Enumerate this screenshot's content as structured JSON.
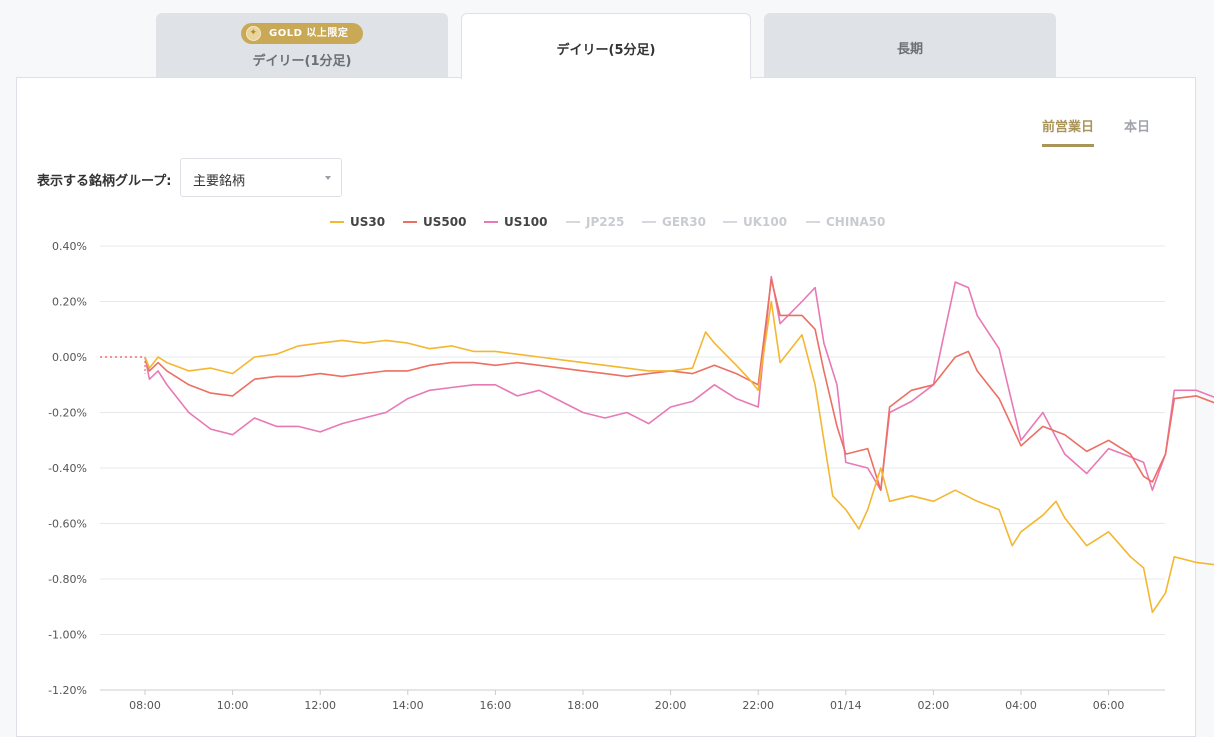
{
  "tabs": [
    {
      "label": "デイリー(1分足)",
      "badge": "GOLD 以上限定",
      "badge_icon": "gold-medal-icon",
      "active": false
    },
    {
      "label": "デイリー(5分足)",
      "active": true
    },
    {
      "label": "長期",
      "active": false
    }
  ],
  "day_toggle": {
    "previous": "前営業日",
    "today": "本日"
  },
  "group_selector": {
    "label": "表示する銘柄グループ:",
    "value": "主要銘柄"
  },
  "colors": {
    "accent_gold": "#a9955a",
    "badge_gold": "#c9a955"
  },
  "chart_data": {
    "type": "line",
    "ylim": [
      -1.2,
      0.4
    ],
    "y_ticks": [
      "0.40%",
      "0.20%",
      "0.00%",
      "-0.20%",
      "-0.40%",
      "-0.60%",
      "-0.80%",
      "-1.00%",
      "-1.20%"
    ],
    "x_ticks": [
      "08:00",
      "10:00",
      "12:00",
      "14:00",
      "16:00",
      "18:00",
      "20:00",
      "22:00",
      "01/14",
      "02:00",
      "04:00",
      "06:00"
    ],
    "legend": [
      {
        "name": "US30",
        "color": "#f4b731",
        "active": true
      },
      {
        "name": "US500",
        "color": "#ec6f63",
        "active": true
      },
      {
        "name": "US100",
        "color": "#e879b5",
        "active": true
      },
      {
        "name": "JP225",
        "color": "#cccccc",
        "active": false
      },
      {
        "name": "GER30",
        "color": "#cccccc",
        "active": false
      },
      {
        "name": "UK100",
        "color": "#cccccc",
        "active": false
      },
      {
        "name": "CHINA50",
        "color": "#cccccc",
        "active": false
      }
    ],
    "series": [
      {
        "name": "US30",
        "color": "#f4b731",
        "points": [
          [
            0,
            0
          ],
          [
            0.1,
            -0.04
          ],
          [
            0.3,
            0
          ],
          [
            0.5,
            -0.02
          ],
          [
            1,
            -0.05
          ],
          [
            1.5,
            -0.04
          ],
          [
            2,
            -0.06
          ],
          [
            2.5,
            0
          ],
          [
            3,
            0.01
          ],
          [
            3.5,
            0.04
          ],
          [
            4,
            0.05
          ],
          [
            4.5,
            0.06
          ],
          [
            5,
            0.05
          ],
          [
            5.5,
            0.06
          ],
          [
            6,
            0.05
          ],
          [
            6.5,
            0.03
          ],
          [
            7,
            0.04
          ],
          [
            7.5,
            0.02
          ],
          [
            8,
            0.02
          ],
          [
            8.5,
            0.01
          ],
          [
            9,
            0
          ],
          [
            9.5,
            -0.01
          ],
          [
            10,
            -0.02
          ],
          [
            10.5,
            -0.03
          ],
          [
            11,
            -0.04
          ],
          [
            11.5,
            -0.05
          ],
          [
            12,
            -0.05
          ],
          [
            12.5,
            -0.04
          ],
          [
            12.8,
            0.09
          ],
          [
            13,
            0.05
          ],
          [
            13.5,
            -0.03
          ],
          [
            13.8,
            -0.08
          ],
          [
            14,
            -0.12
          ],
          [
            14.3,
            0.2
          ],
          [
            14.5,
            -0.02
          ],
          [
            15,
            0.08
          ],
          [
            15.3,
            -0.1
          ],
          [
            15.5,
            -0.3
          ],
          [
            15.7,
            -0.5
          ],
          [
            16,
            -0.55
          ],
          [
            16.3,
            -0.62
          ],
          [
            16.5,
            -0.55
          ],
          [
            16.8,
            -0.4
          ],
          [
            17,
            -0.52
          ],
          [
            17.5,
            -0.5
          ],
          [
            18,
            -0.52
          ],
          [
            18.5,
            -0.48
          ],
          [
            19,
            -0.52
          ],
          [
            19.5,
            -0.55
          ],
          [
            19.8,
            -0.68
          ],
          [
            20,
            -0.63
          ],
          [
            20.5,
            -0.57
          ],
          [
            20.8,
            -0.52
          ],
          [
            21,
            -0.58
          ],
          [
            21.5,
            -0.68
          ],
          [
            22,
            -0.63
          ],
          [
            22.5,
            -0.72
          ],
          [
            22.8,
            -0.76
          ],
          [
            23,
            -0.92
          ],
          [
            23.3,
            -0.85
          ],
          [
            23.5,
            -0.72
          ],
          [
            24,
            -0.74
          ],
          [
            24.5,
            -0.75
          ]
        ]
      },
      {
        "name": "US500",
        "color": "#ec6f63",
        "points": [
          [
            0,
            0
          ],
          [
            0.1,
            -0.05
          ],
          [
            0.3,
            -0.02
          ],
          [
            0.5,
            -0.05
          ],
          [
            1,
            -0.1
          ],
          [
            1.5,
            -0.13
          ],
          [
            2,
            -0.14
          ],
          [
            2.5,
            -0.08
          ],
          [
            3,
            -0.07
          ],
          [
            3.5,
            -0.07
          ],
          [
            4,
            -0.06
          ],
          [
            4.5,
            -0.07
          ],
          [
            5,
            -0.06
          ],
          [
            5.5,
            -0.05
          ],
          [
            6,
            -0.05
          ],
          [
            6.5,
            -0.03
          ],
          [
            7,
            -0.02
          ],
          [
            7.5,
            -0.02
          ],
          [
            8,
            -0.03
          ],
          [
            8.5,
            -0.02
          ],
          [
            9,
            -0.03
          ],
          [
            9.5,
            -0.04
          ],
          [
            10,
            -0.05
          ],
          [
            10.5,
            -0.06
          ],
          [
            11,
            -0.07
          ],
          [
            11.5,
            -0.06
          ],
          [
            12,
            -0.05
          ],
          [
            12.5,
            -0.06
          ],
          [
            13,
            -0.03
          ],
          [
            13.5,
            -0.06
          ],
          [
            14,
            -0.1
          ],
          [
            14.3,
            0.28
          ],
          [
            14.5,
            0.15
          ],
          [
            15,
            0.15
          ],
          [
            15.3,
            0.1
          ],
          [
            15.5,
            -0.05
          ],
          [
            15.8,
            -0.25
          ],
          [
            16,
            -0.35
          ],
          [
            16.5,
            -0.33
          ],
          [
            16.8,
            -0.48
          ],
          [
            17,
            -0.18
          ],
          [
            17.5,
            -0.12
          ],
          [
            18,
            -0.1
          ],
          [
            18.5,
            0
          ],
          [
            18.8,
            0.02
          ],
          [
            19,
            -0.05
          ],
          [
            19.5,
            -0.15
          ],
          [
            20,
            -0.32
          ],
          [
            20.5,
            -0.25
          ],
          [
            21,
            -0.28
          ],
          [
            21.5,
            -0.34
          ],
          [
            22,
            -0.3
          ],
          [
            22.5,
            -0.35
          ],
          [
            22.8,
            -0.43
          ],
          [
            23,
            -0.45
          ],
          [
            23.3,
            -0.35
          ],
          [
            23.5,
            -0.15
          ],
          [
            24,
            -0.14
          ],
          [
            24.5,
            -0.17
          ]
        ]
      },
      {
        "name": "US100",
        "color": "#e879b5",
        "points": [
          [
            0,
            0
          ],
          [
            0.1,
            -0.08
          ],
          [
            0.3,
            -0.05
          ],
          [
            0.5,
            -0.1
          ],
          [
            1,
            -0.2
          ],
          [
            1.5,
            -0.26
          ],
          [
            2,
            -0.28
          ],
          [
            2.5,
            -0.22
          ],
          [
            3,
            -0.25
          ],
          [
            3.5,
            -0.25
          ],
          [
            4,
            -0.27
          ],
          [
            4.5,
            -0.24
          ],
          [
            5,
            -0.22
          ],
          [
            5.5,
            -0.2
          ],
          [
            6,
            -0.15
          ],
          [
            6.5,
            -0.12
          ],
          [
            7,
            -0.11
          ],
          [
            7.5,
            -0.1
          ],
          [
            8,
            -0.1
          ],
          [
            8.5,
            -0.14
          ],
          [
            9,
            -0.12
          ],
          [
            9.5,
            -0.16
          ],
          [
            10,
            -0.2
          ],
          [
            10.5,
            -0.22
          ],
          [
            11,
            -0.2
          ],
          [
            11.5,
            -0.24
          ],
          [
            12,
            -0.18
          ],
          [
            12.5,
            -0.16
          ],
          [
            13,
            -0.1
          ],
          [
            13.5,
            -0.15
          ],
          [
            14,
            -0.18
          ],
          [
            14.3,
            0.29
          ],
          [
            14.5,
            0.12
          ],
          [
            15,
            0.2
          ],
          [
            15.3,
            0.25
          ],
          [
            15.5,
            0.05
          ],
          [
            15.8,
            -0.1
          ],
          [
            16,
            -0.38
          ],
          [
            16.5,
            -0.4
          ],
          [
            16.8,
            -0.48
          ],
          [
            17,
            -0.2
          ],
          [
            17.5,
            -0.16
          ],
          [
            18,
            -0.1
          ],
          [
            18.2,
            0.05
          ],
          [
            18.5,
            0.27
          ],
          [
            18.8,
            0.25
          ],
          [
            19,
            0.15
          ],
          [
            19.5,
            0.03
          ],
          [
            20,
            -0.3
          ],
          [
            20.5,
            -0.2
          ],
          [
            21,
            -0.35
          ],
          [
            21.5,
            -0.42
          ],
          [
            22,
            -0.33
          ],
          [
            22.5,
            -0.36
          ],
          [
            22.8,
            -0.38
          ],
          [
            23,
            -0.48
          ],
          [
            23.3,
            -0.35
          ],
          [
            23.5,
            -0.12
          ],
          [
            24,
            -0.12
          ],
          [
            24.5,
            -0.15
          ]
        ]
      }
    ]
  }
}
